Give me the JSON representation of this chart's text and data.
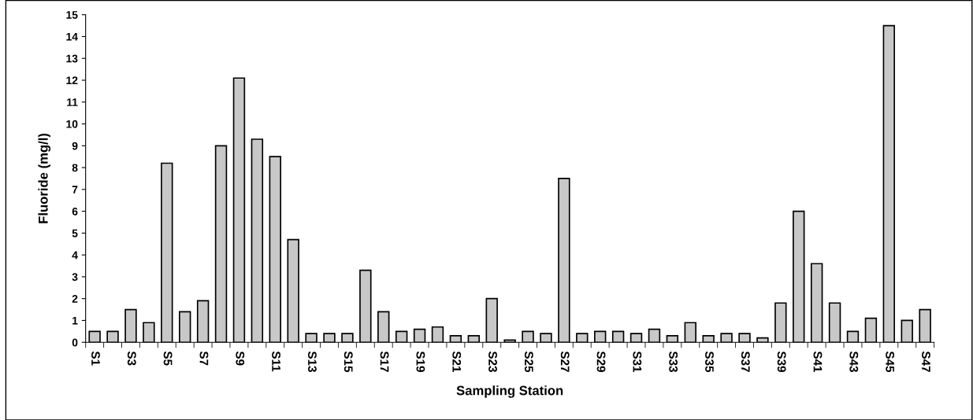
{
  "chart_data": {
    "type": "bar",
    "xlabel": "Sampling Station",
    "ylabel": "Fluoride (mg/l)",
    "categories": [
      "S1",
      null,
      "S3",
      null,
      "S5",
      null,
      "S7",
      null,
      "S9",
      null,
      "S11",
      null,
      "S13",
      null,
      "S15",
      null,
      "S17",
      null,
      "S19",
      null,
      "S21",
      null,
      "S23",
      null,
      "S25",
      null,
      "S27",
      null,
      "S29",
      null,
      "S31",
      null,
      "S33",
      null,
      "S35",
      null,
      "S37",
      null,
      "S39",
      null,
      "S41",
      null,
      "S43",
      null,
      "S45",
      null,
      "S47"
    ],
    "values": [
      0.5,
      0.5,
      1.5,
      0.9,
      8.2,
      1.4,
      1.9,
      9.0,
      12.1,
      9.3,
      8.5,
      4.7,
      0.4,
      0.4,
      0.4,
      3.3,
      1.4,
      0.5,
      0.6,
      0.7,
      0.3,
      0.3,
      2.0,
      0.1,
      0.5,
      0.4,
      7.5,
      0.4,
      0.5,
      0.5,
      0.4,
      0.6,
      0.3,
      0.9,
      0.3,
      0.4,
      0.4,
      0.2,
      1.8,
      6.0,
      3.6,
      1.8,
      0.5,
      1.1,
      14.5,
      1.0,
      1.5
    ],
    "color": "#c8c8c8",
    "ylim": [
      0,
      15
    ],
    "yticks": [
      0,
      1,
      2,
      3,
      4,
      5,
      6,
      7,
      8,
      9,
      10,
      11,
      12,
      13,
      14,
      15
    ],
    "grid": false,
    "legend": false
  }
}
